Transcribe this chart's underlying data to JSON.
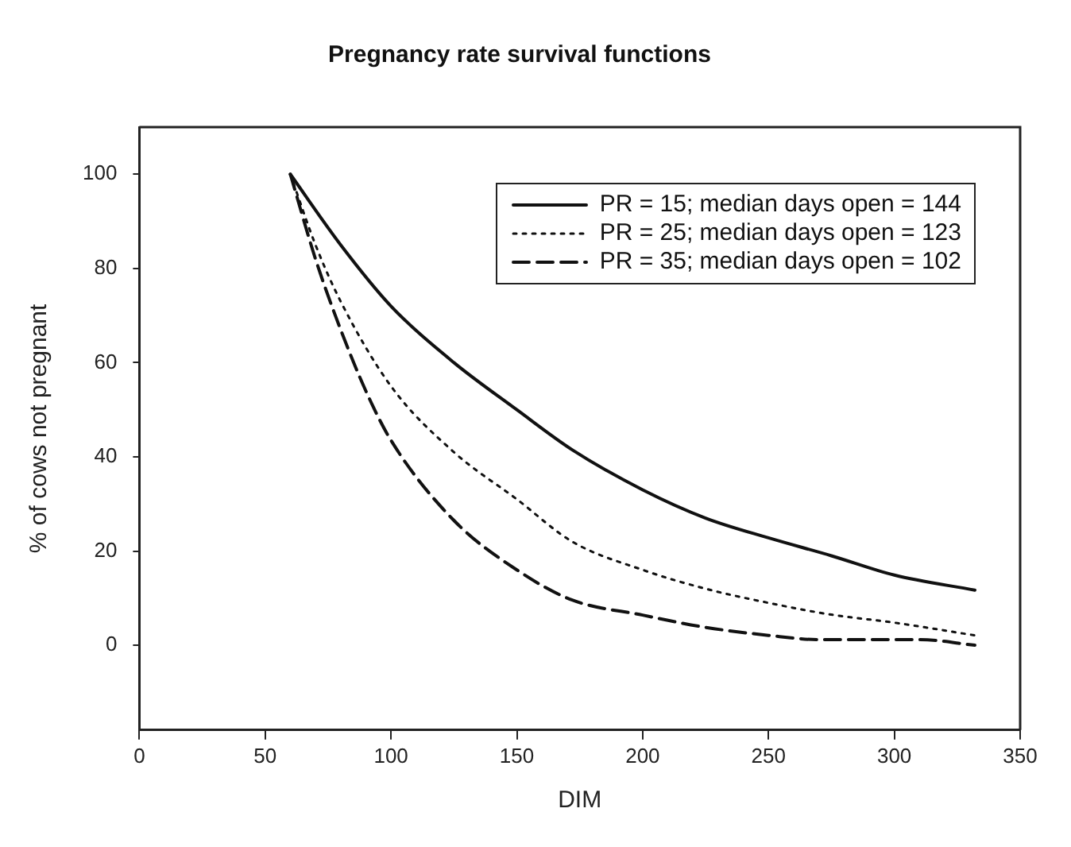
{
  "chart_data": {
    "type": "line",
    "title": "Pregnancy rate survival functions",
    "xlabel": "DIM",
    "ylabel": "% of cows not pregnant",
    "xlim": [
      0,
      350
    ],
    "xticks": [
      0,
      50,
      100,
      150,
      200,
      250,
      300,
      350
    ],
    "ylim": [
      -18,
      110
    ],
    "yticks": [
      0,
      20,
      40,
      60,
      80,
      100
    ],
    "grid": false,
    "legend": "top right",
    "marker": "none",
    "series": [
      {
        "name": "PR = 15; median days open = 144",
        "color": "#111111",
        "line_style": "solid",
        "x": [
          60,
          80,
          100,
          125,
          150,
          172,
          200,
          225,
          250,
          275,
          300,
          332
        ],
        "values": [
          100,
          85,
          72,
          60,
          50,
          41.5,
          33,
          27,
          22.8,
          19,
          14.9,
          11.7
        ]
      },
      {
        "name": "PR = 25; median days open = 123",
        "color": "#111111",
        "line_style": "dotted",
        "x": [
          60,
          70,
          80,
          100,
          125,
          150,
          172,
          200,
          225,
          250,
          275,
          300,
          332
        ],
        "values": [
          100,
          85,
          73,
          55,
          41,
          31,
          22,
          16,
          12,
          9,
          6.5,
          4.8,
          2.1
        ]
      },
      {
        "name": "PR = 35; median days open = 102",
        "color": "#111111",
        "line_style": "dashed",
        "x": [
          60,
          70,
          80,
          90,
          100,
          125,
          150,
          172,
          200,
          225,
          250,
          270,
          310,
          332
        ],
        "values": [
          100,
          82,
          67,
          54,
          43.5,
          26.5,
          16,
          9.6,
          6.4,
          3.8,
          2.1,
          1.2,
          1.2,
          0
        ]
      }
    ]
  }
}
